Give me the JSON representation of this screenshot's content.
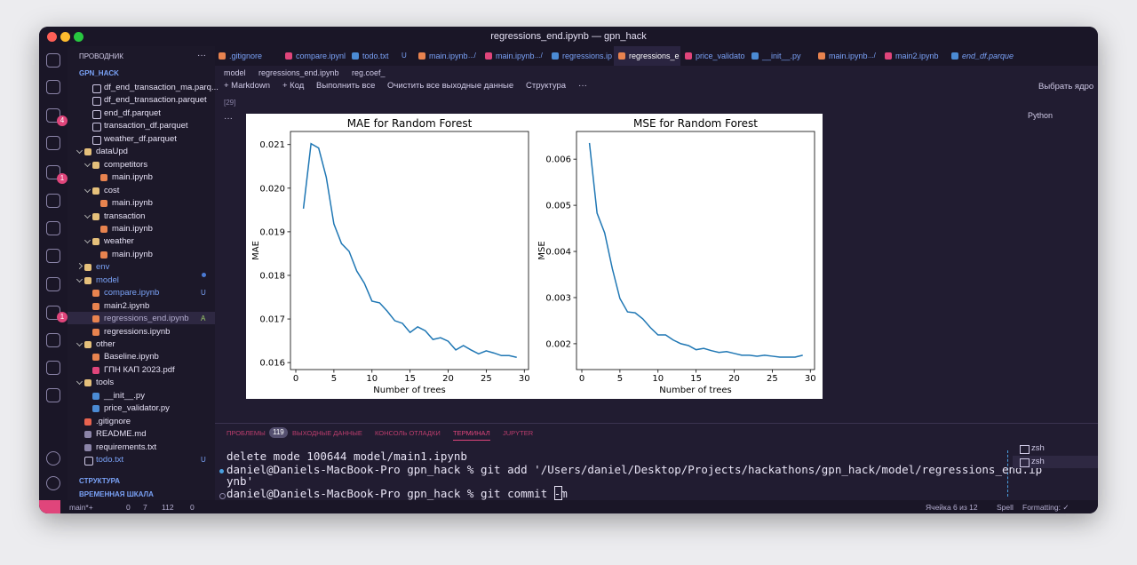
{
  "window_title": "regressions_end.ipynb — gpn_hack",
  "menu": "···",
  "activity_badges": [
    "4",
    "1",
    "1"
  ],
  "sidebar": {
    "title": "ПРОВОДНИК",
    "root": "GPN_HACK",
    "items": [
      {
        "label": "df_end_transaction_ma.parq..."
      },
      {
        "label": "df_end_transaction.parquet"
      },
      {
        "label": "end_df.parquet"
      },
      {
        "label": "transaction_df.parquet"
      },
      {
        "label": "weather_df.parquet"
      },
      {
        "label": "dataUpd"
      },
      {
        "label": "competitors"
      },
      {
        "label": "main.ipynb"
      },
      {
        "label": "cost"
      },
      {
        "label": "main.ipynb"
      },
      {
        "label": "transaction"
      },
      {
        "label": "main.ipynb"
      },
      {
        "label": "weather"
      },
      {
        "label": "main.ipynb"
      },
      {
        "label": "env"
      },
      {
        "label": "model"
      },
      {
        "label": "compare.ipynb",
        "badge": "U"
      },
      {
        "label": "main2.ipynb"
      },
      {
        "label": "regressions_end.ipynb",
        "badge": "A"
      },
      {
        "label": "regressions.ipynb"
      },
      {
        "label": "other"
      },
      {
        "label": "Baseline.ipynb"
      },
      {
        "label": "ГПН КАП 2023.pdf"
      },
      {
        "label": "tools"
      },
      {
        "label": "__init__.py"
      },
      {
        "label": "price_validator.py"
      },
      {
        "label": ".gitignore"
      },
      {
        "label": "README.md"
      },
      {
        "label": "requirements.txt"
      },
      {
        "label": "todo.txt",
        "badge": "U"
      }
    ],
    "sections": [
      "СТРУКТУРА",
      "ВРЕМЕННАЯ ШКАЛА"
    ]
  },
  "tabs": [
    {
      "label": ".gitignore"
    },
    {
      "label": "compare.ipynl"
    },
    {
      "label": "todo.txt",
      "badge": "U"
    },
    {
      "label": "main.ipynb",
      "badge": ".../"
    },
    {
      "label": "main.ipynb",
      "badge": ".../"
    },
    {
      "label": "regressions.ip"
    },
    {
      "label": "regressions_e"
    },
    {
      "label": "price_validato"
    },
    {
      "label": "__init__.py"
    },
    {
      "label": "main.ipynb",
      "badge": ".../"
    },
    {
      "label": "main2.ipynb"
    },
    {
      "label": "end_df.parque"
    }
  ],
  "breadcrumbs": [
    "model",
    "regressions_end.ipynb",
    "reg.coef_"
  ],
  "toolbar": [
    "+ Markdown",
    "+ Код",
    "Выполнить все",
    "Очистить все выходные данные",
    "Структура"
  ],
  "kernel": "Выбрать ядро",
  "cell": {
    "count": "[29]",
    "language": "Python"
  },
  "chart_data": [
    {
      "type": "line",
      "title": "MAE for Random Forest",
      "x_label": "Number of trees",
      "y_label": "MAE",
      "color": "#1f77b4",
      "x": [
        1,
        2,
        3,
        4,
        5,
        6,
        7,
        8,
        9,
        10,
        11,
        12,
        13,
        14,
        15,
        16,
        17,
        18,
        19,
        20,
        21,
        22,
        23,
        24,
        25,
        26,
        27,
        28,
        29
      ],
      "values": [
        0.01953,
        0.02102,
        0.02092,
        0.02025,
        0.01918,
        0.01873,
        0.01855,
        0.0181,
        0.01782,
        0.01741,
        0.01737,
        0.01718,
        0.01696,
        0.0169,
        0.01669,
        0.01682,
        0.01673,
        0.01653,
        0.01657,
        0.01649,
        0.01629,
        0.01639,
        0.01629,
        0.0162,
        0.01627,
        0.01622,
        0.01616,
        0.01616,
        0.01612
      ],
      "xlim": [
        -0.7,
        30.55
      ],
      "ylim": [
        0.01584,
        0.0213
      ],
      "xticks": [
        0,
        5,
        10,
        15,
        20,
        25,
        30
      ],
      "yticks": [
        0.016,
        0.017,
        0.018,
        0.019,
        {
          "value": 0.02,
          "label": "0.020"
        },
        0.021
      ]
    },
    {
      "type": "line",
      "title": "MSE for Random Forest",
      "x_label": "Number of trees",
      "y_label": "MSE",
      "color": "#1f77b4",
      "x": [
        1,
        2,
        3,
        4,
        5,
        6,
        7,
        8,
        9,
        10,
        11,
        12,
        13,
        14,
        15,
        16,
        17,
        18,
        19,
        20,
        21,
        22,
        23,
        24,
        25,
        26,
        27,
        28,
        29
      ],
      "values": [
        0.00635,
        0.00483,
        0.0044,
        0.00363,
        0.00298,
        0.00269,
        0.00267,
        0.00254,
        0.00235,
        0.00219,
        0.00219,
        0.00208,
        0.002,
        0.00196,
        0.00187,
        0.0019,
        0.00185,
        0.00181,
        0.00183,
        0.00179,
        0.00175,
        0.00175,
        0.00173,
        0.00175,
        0.00173,
        0.00171,
        0.00171,
        0.00171,
        0.00175
      ],
      "xlim": [
        -0.7,
        30.55
      ],
      "ylim": [
        0.00144,
        0.0066
      ],
      "xticks": [
        0,
        5,
        10,
        15,
        20,
        25,
        30
      ],
      "yticks": [
        0.002,
        0.003,
        0.004,
        0.005,
        0.006
      ]
    }
  ],
  "panel": {
    "tabs": [
      "ПРОБЛЕМЫ",
      "ВЫХОДНЫЕ ДАННЫЕ",
      "КОНСОЛЬ ОТЛАДКИ",
      "ТЕРМИНАЛ",
      "JUPYTER"
    ],
    "problems_count": "119",
    "terminal": [
      " delete mode 100644 model/main1.ipynb",
      "daniel@Daniels-MacBook-Pro gpn_hack % git add '/Users/daniel/Desktop/Projects/hackathons/gpn_hack/model/regressions_end.ip",
      "ynb'",
      "daniel@Daniels-MacBook-Pro gpn_hack % git commit -m "
    ],
    "shells": [
      "zsh",
      "zsh"
    ]
  },
  "status": {
    "branch": "main*+",
    "errors": "0",
    "warnings": "7",
    "info": "112",
    "ports": "0",
    "cell": "Ячейка 6 из 12",
    "spell": "Spell",
    "formatting": "Formatting: ✓"
  }
}
